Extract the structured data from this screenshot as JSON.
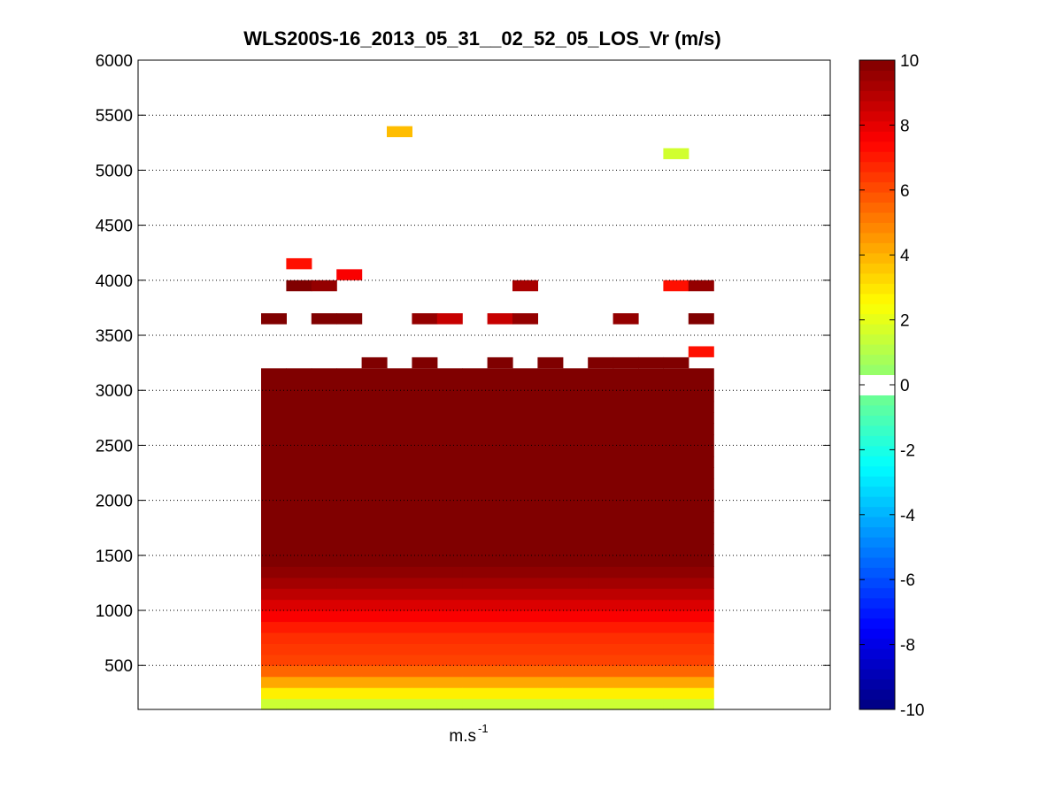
{
  "chart_data": {
    "type": "heatmap",
    "title": "WLS200S-16_2013_05_31__02_52_05_LOS_Vr (m/s)",
    "xlabel": "m.s",
    "xlabel_sup": "-1",
    "ylabel": "",
    "ylim": [
      100,
      6000
    ],
    "yticks": [
      500,
      1000,
      1500,
      2000,
      2500,
      3000,
      3500,
      4000,
      4500,
      5000,
      5500,
      6000
    ],
    "grid": "y-dotted",
    "colormap": "jet",
    "clim": [
      -10,
      10
    ],
    "colorbar_ticks": [
      -10,
      -8,
      -6,
      -4,
      -2,
      0,
      2,
      4,
      6,
      8,
      10
    ],
    "colorbar_position": "right",
    "n_columns": 18,
    "range_gate_m": 100,
    "profile": [
      {
        "z": 150,
        "v": 1.5
      },
      {
        "z": 250,
        "v": 2.8
      },
      {
        "z": 350,
        "v": 4.2
      },
      {
        "z": 450,
        "v": 5.5
      },
      {
        "z": 550,
        "v": 6.2
      },
      {
        "z": 650,
        "v": 6.4
      },
      {
        "z": 750,
        "v": 6.6
      },
      {
        "z": 850,
        "v": 7.0
      },
      {
        "z": 950,
        "v": 7.6
      },
      {
        "z": 1050,
        "v": 8.2
      },
      {
        "z": 1150,
        "v": 8.8
      },
      {
        "z": 1250,
        "v": 9.3
      },
      {
        "z": 1350,
        "v": 9.7
      },
      {
        "z": 1450,
        "v": 10
      },
      {
        "z": 3150,
        "v": 10
      }
    ],
    "top_cells": [
      {
        "col": 4,
        "z": 3250,
        "v": 10
      },
      {
        "col": 6,
        "z": 3250,
        "v": 10
      },
      {
        "col": 9,
        "z": 3250,
        "v": 10
      },
      {
        "col": 11,
        "z": 3250,
        "v": 10
      },
      {
        "col": 13,
        "z": 3250,
        "v": 10
      },
      {
        "col": 14,
        "z": 3250,
        "v": 10
      },
      {
        "col": 15,
        "z": 3250,
        "v": 10
      },
      {
        "col": 16,
        "z": 3250,
        "v": 10
      },
      {
        "col": 17,
        "z": 3350,
        "v": 7.2
      },
      {
        "col": 0,
        "z": 3650,
        "v": 10
      },
      {
        "col": 2,
        "z": 3650,
        "v": 10
      },
      {
        "col": 3,
        "z": 3650,
        "v": 10
      },
      {
        "col": 6,
        "z": 3650,
        "v": 9.6
      },
      {
        "col": 7,
        "z": 3650,
        "v": 8.6
      },
      {
        "col": 9,
        "z": 3650,
        "v": 8.6
      },
      {
        "col": 10,
        "z": 3650,
        "v": 9.6
      },
      {
        "col": 14,
        "z": 3650,
        "v": 9.6
      },
      {
        "col": 17,
        "z": 3650,
        "v": 10
      },
      {
        "col": 1,
        "z": 3950,
        "v": 10
      },
      {
        "col": 2,
        "z": 3950,
        "v": 9.6
      },
      {
        "col": 10,
        "z": 3950,
        "v": 9.2
      },
      {
        "col": 16,
        "z": 3950,
        "v": 7.2
      },
      {
        "col": 17,
        "z": 3950,
        "v": 9.6
      },
      {
        "col": 3,
        "z": 4050,
        "v": 7.6
      },
      {
        "col": 1,
        "z": 4150,
        "v": 7.2
      },
      {
        "col": 16,
        "z": 5150,
        "v": 1.6
      },
      {
        "col": 5,
        "z": 5350,
        "v": 3.8
      }
    ]
  }
}
